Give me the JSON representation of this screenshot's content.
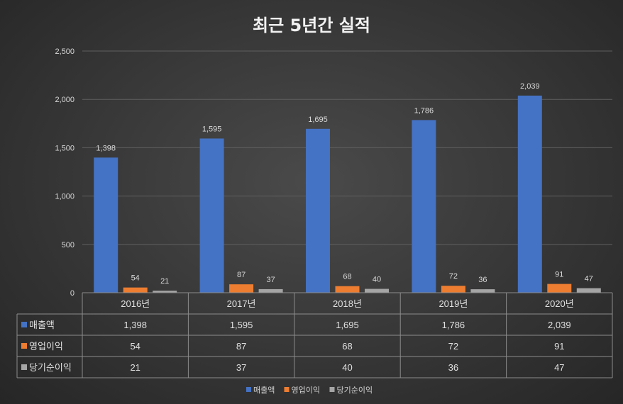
{
  "chart_data": {
    "type": "bar",
    "title": "최근 5년간 실적",
    "categories": [
      "2016년",
      "2017년",
      "2018년",
      "2019년",
      "2020년"
    ],
    "series": [
      {
        "name": "매출액",
        "color": "#4472c4",
        "values": [
          1398,
          1595,
          1695,
          1786,
          2039
        ]
      },
      {
        "name": "영업이익",
        "color": "#ed7d31",
        "values": [
          54,
          87,
          68,
          72,
          91
        ]
      },
      {
        "name": "당기순이익",
        "color": "#a5a5a5",
        "values": [
          21,
          37,
          40,
          36,
          47
        ]
      }
    ],
    "ylim": [
      0,
      2500
    ],
    "yticks": [
      0,
      500,
      1000,
      1500,
      2000,
      2500
    ],
    "grid": true,
    "data_table": true,
    "legend_position": "bottom"
  }
}
